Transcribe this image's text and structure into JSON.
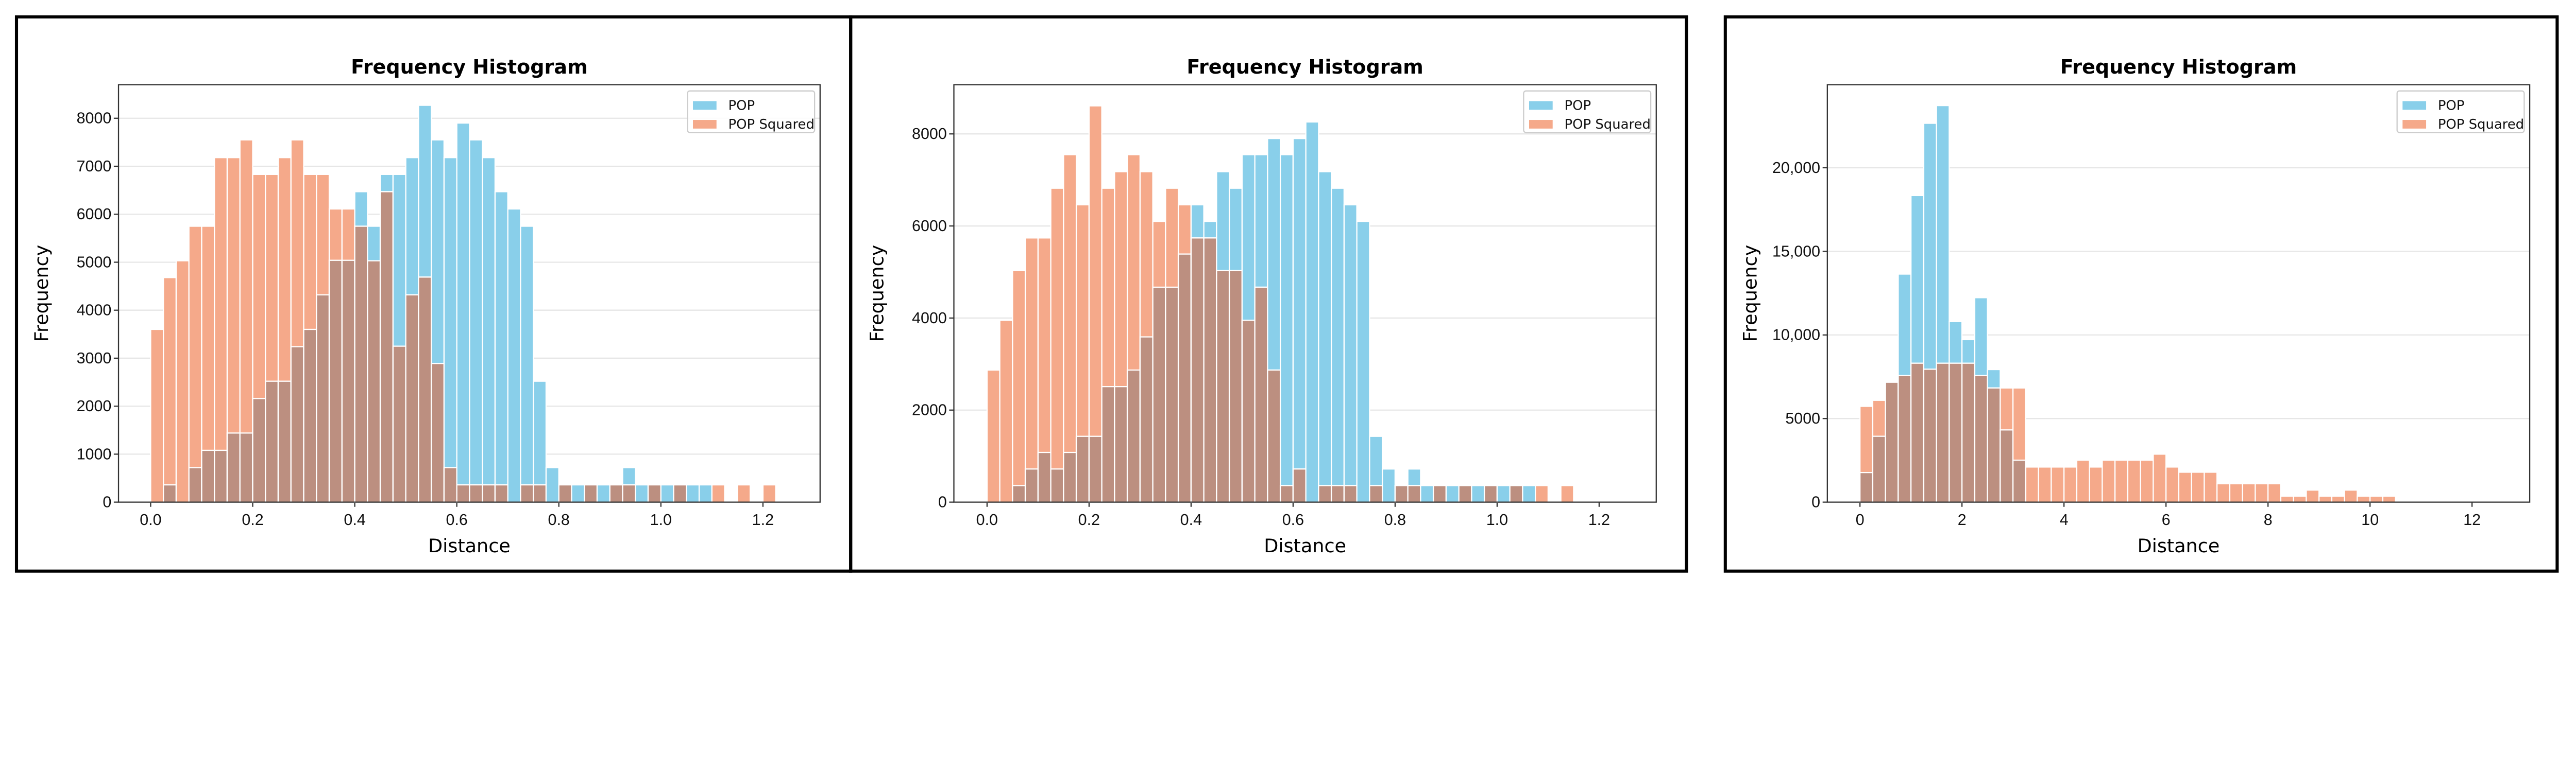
{
  "colors": {
    "pop": "#89CFEA",
    "pop_squared": "#F5A98A",
    "overlap": "#BC8F80"
  },
  "chart_data": [
    {
      "type": "bar",
      "title": "Frequency Histogram",
      "xlabel": "Distance",
      "ylabel": "Frequency",
      "bin_start": 0,
      "bin_width": 0.025,
      "xlim": [
        -0.063,
        1.312
      ],
      "ylim": [
        0,
        8700
      ],
      "xticks": [
        0,
        0.2,
        0.4,
        0.6,
        0.8,
        1.0,
        1.2
      ],
      "xtick_labels": [
        "0.0",
        "0.2",
        "0.4",
        "0.6",
        "0.8",
        "1.0",
        "1.2"
      ],
      "yticks": [
        0,
        1000,
        2000,
        3000,
        4000,
        5000,
        6000,
        7000,
        8000
      ],
      "ytick_labels": [
        "0",
        "1000",
        "2000",
        "3000",
        "4000",
        "5000",
        "6000",
        "7000",
        "8000"
      ],
      "grid": "horizontal",
      "legend": "top-right",
      "series": [
        {
          "name": "POP",
          "values": [
            0,
            360,
            0,
            720,
            1080,
            1080,
            1440,
            1440,
            2160,
            2520,
            2520,
            3240,
            3600,
            4320,
            5040,
            5040,
            6470,
            5750,
            6830,
            6830,
            7180,
            8270,
            7550,
            7180,
            7900,
            7550,
            7180,
            6470,
            6110,
            5750,
            2520,
            720,
            360,
            360,
            360,
            360,
            360,
            720,
            360,
            360,
            360,
            360,
            360,
            360,
            0,
            0,
            0,
            0,
            0
          ]
        },
        {
          "name": "POP Squared",
          "values": [
            3600,
            4680,
            5030,
            5750,
            5750,
            7180,
            7180,
            7550,
            6830,
            6830,
            7180,
            7550,
            6830,
            6830,
            6110,
            6110,
            5750,
            5030,
            6470,
            3250,
            4320,
            4690,
            2890,
            720,
            360,
            360,
            360,
            360,
            0,
            360,
            360,
            0,
            360,
            0,
            360,
            0,
            360,
            360,
            0,
            360,
            0,
            360,
            0,
            0,
            360,
            0,
            360,
            0,
            360
          ]
        }
      ]
    },
    {
      "type": "bar",
      "title": "Frequency Histogram",
      "xlabel": "Distance",
      "ylabel": "Frequency",
      "bin_start": 0,
      "bin_width": 0.025,
      "xlim": [
        -0.065,
        1.312
      ],
      "ylim": [
        0,
        9070
      ],
      "xticks": [
        0,
        0.2,
        0.4,
        0.6,
        0.8,
        1.0,
        1.2
      ],
      "xtick_labels": [
        "0.0",
        "0.2",
        "0.4",
        "0.6",
        "0.8",
        "1.0",
        "1.2"
      ],
      "yticks": [
        0,
        2000,
        4000,
        6000,
        8000
      ],
      "ytick_labels": [
        "0",
        "2000",
        "4000",
        "6000",
        "8000"
      ],
      "grid": "horizontal",
      "legend": "top-right",
      "series": [
        {
          "name": "POP",
          "values": [
            0,
            0,
            360,
            720,
            1080,
            720,
            1080,
            1430,
            1430,
            2510,
            2510,
            2870,
            3590,
            4670,
            4670,
            5390,
            6460,
            6100,
            7180,
            6820,
            7550,
            7550,
            7900,
            7550,
            7900,
            8260,
            7180,
            6820,
            6460,
            6100,
            1430,
            720,
            360,
            720,
            360,
            360,
            360,
            360,
            360,
            360,
            360,
            360,
            360,
            0,
            0,
            0
          ]
        },
        {
          "name": "POP Squared",
          "values": [
            2870,
            3950,
            5030,
            5740,
            5740,
            6820,
            7550,
            6460,
            8610,
            6820,
            7180,
            7550,
            7180,
            6100,
            6820,
            6460,
            5740,
            5740,
            5030,
            5030,
            3950,
            4670,
            2870,
            360,
            720,
            0,
            360,
            360,
            360,
            0,
            360,
            0,
            360,
            360,
            0,
            360,
            0,
            360,
            0,
            360,
            0,
            360,
            0,
            360,
            0,
            360
          ]
        }
      ]
    },
    {
      "type": "bar",
      "title": "Frequency Histogram",
      "xlabel": "Distance",
      "ylabel": "Frequency",
      "bin_start": 0,
      "bin_width": 0.25,
      "xlim": [
        -0.64,
        13.13
      ],
      "ylim": [
        0,
        24970
      ],
      "xticks": [
        0,
        2,
        4,
        6,
        8,
        10,
        12
      ],
      "xtick_labels": [
        "0",
        "2",
        "4",
        "6",
        "8",
        "10",
        "12"
      ],
      "yticks": [
        0,
        5000,
        10000,
        15000,
        20000
      ],
      "ytick_labels": [
        "0",
        "5000",
        "10,000",
        "15,000",
        "20,000"
      ],
      "grid": "horizontal",
      "legend": "top-right",
      "series": [
        {
          "name": "POP",
          "values": [
            1770,
            3940,
            7170,
            13640,
            18340,
            22660,
            23720,
            10800,
            9720,
            12230,
            7930,
            4320,
            2510,
            0,
            0,
            0,
            0,
            0,
            0,
            0,
            0,
            0,
            0,
            0,
            0,
            0,
            0,
            0,
            0,
            0,
            0,
            0,
            0,
            0,
            0,
            0,
            0,
            0,
            0,
            0,
            0,
            0
          ]
        },
        {
          "name": "POP Squared",
          "values": [
            5730,
            6090,
            7170,
            7570,
            8310,
            7950,
            8310,
            8310,
            8310,
            7570,
            6830,
            6830,
            6830,
            2100,
            2100,
            2100,
            2100,
            2510,
            2100,
            2510,
            2510,
            2510,
            2510,
            2870,
            2100,
            1790,
            1790,
            1790,
            1100,
            1100,
            1100,
            1100,
            1100,
            360,
            360,
            720,
            360,
            360,
            720,
            360,
            360,
            360
          ]
        }
      ]
    }
  ]
}
